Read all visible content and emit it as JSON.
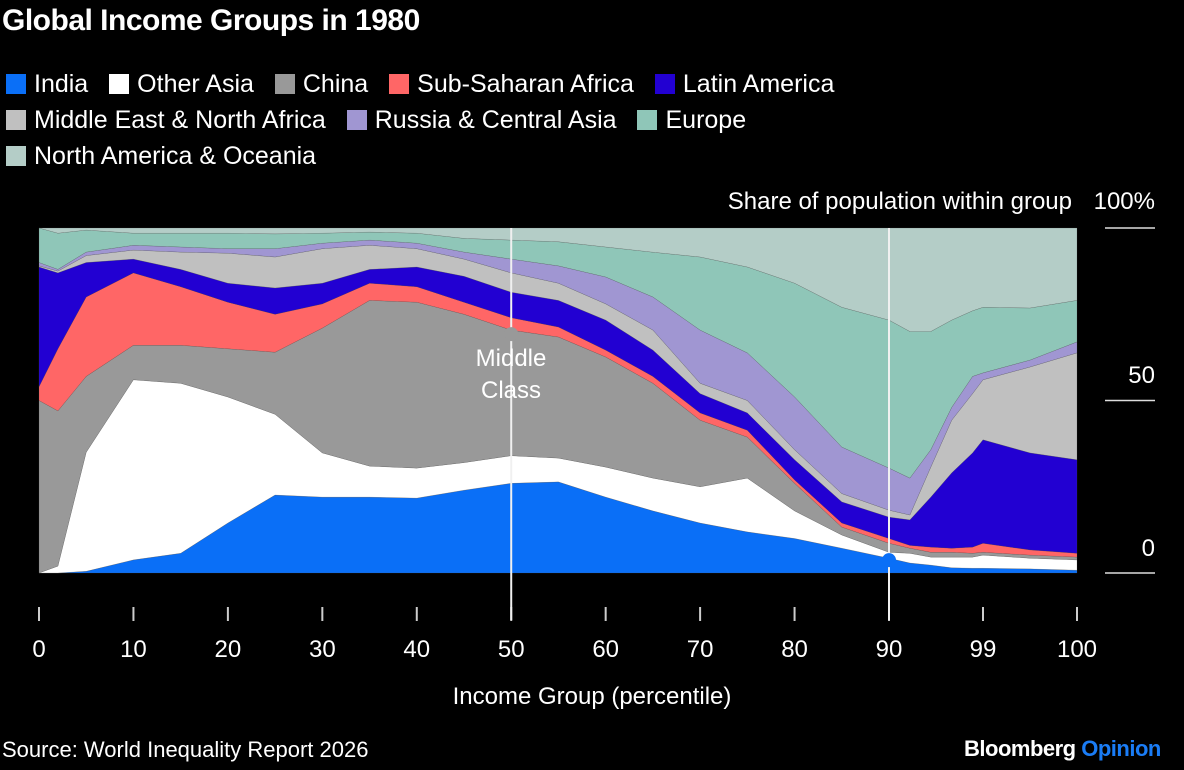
{
  "title": "Global Income Groups in 1980",
  "source": "Source: World Inequality Report 2026",
  "brand": {
    "name": "Bloomberg",
    "suffix": "Opinion"
  },
  "chart_data": {
    "type": "area",
    "stacked": true,
    "title": "Global Income Groups in 1980",
    "xlabel": "Income Group (percentile)",
    "ylabel": "Share of population within group",
    "ylim": [
      0,
      100
    ],
    "y_ticks": [
      "100%",
      "50",
      "0"
    ],
    "y_tick_values": [
      100,
      50,
      0
    ],
    "x_ticks": [
      "0",
      "10",
      "20",
      "30",
      "40",
      "50",
      "60",
      "70",
      "80",
      "90",
      "99",
      "100"
    ],
    "x_tick_values": [
      0,
      10,
      20,
      30,
      40,
      50,
      60,
      70,
      80,
      90,
      99,
      100
    ],
    "grid": false,
    "legend_position": "top",
    "annotation": {
      "text_line1": "Middle",
      "text_line2": "Class",
      "x": 50
    },
    "reference_lines": [
      50,
      90
    ],
    "x": [
      0,
      2,
      5,
      10,
      15,
      20,
      25,
      30,
      35,
      40,
      45,
      50,
      55,
      60,
      65,
      70,
      75,
      80,
      85,
      90,
      92,
      94,
      96,
      98,
      99,
      99.5,
      100
    ],
    "series": [
      {
        "name": "India",
        "color": "#0a6ff7",
        "values": [
          0,
          0,
          0.5,
          3.8,
          5.7,
          14.5,
          22.6,
          22,
          22,
          21.7,
          24,
          26,
          26.4,
          22,
          18,
          14.5,
          11.9,
          10,
          7.2,
          4.3,
          2.9,
          2.3,
          1.5,
          1.4,
          1.4,
          1.2,
          0.8
        ]
      },
      {
        "name": "Other Asia",
        "color": "#ffffff",
        "values": [
          0,
          2,
          34.5,
          52.2,
          49.3,
          36.5,
          23.4,
          12.8,
          9,
          8.7,
          8,
          8,
          6.9,
          8.7,
          9.5,
          10.5,
          15.6,
          8,
          3.8,
          1.7,
          2.8,
          2.3,
          3.1,
          3.2,
          3.8,
          3.1,
          3
        ]
      },
      {
        "name": "China",
        "color": "#999999",
        "values": [
          50,
          45,
          22,
          10,
          11,
          14,
          18,
          36.2,
          48,
          48.1,
          43,
          36.4,
          35.1,
          31.9,
          27.5,
          19.3,
          11.9,
          8,
          2.3,
          2.6,
          1.5,
          1.4,
          1.4,
          1.1,
          0.8,
          0.9,
          0.8
        ]
      },
      {
        "name": "Sub-Saharan Africa",
        "color": "#ff6666",
        "values": [
          4,
          18,
          23,
          21,
          17,
          13.5,
          11,
          7,
          5,
          4.5,
          3.5,
          3.6,
          2.9,
          2,
          2,
          2.1,
          2,
          1,
          1.2,
          1.4,
          0.8,
          1.5,
          1.2,
          1.8,
          2.6,
          1.5,
          1.1
        ]
      },
      {
        "name": "Latin America",
        "color": "#2200d2",
        "values": [
          34.7,
          22,
          10,
          4,
          5,
          5.5,
          7.6,
          6,
          4,
          5.7,
          7.5,
          7.4,
          7.7,
          8.7,
          7.6,
          5.6,
          5,
          5.8,
          6.1,
          6.2,
          7.4,
          14.5,
          21.8,
          27.3,
          30,
          28.1,
          27.1
        ]
      },
      {
        "name": "Middle East & North Africa",
        "color": "#c0c0c0",
        "values": [
          0.3,
          0.5,
          2,
          2.6,
          5,
          8.7,
          9,
          10,
          7,
          5.3,
          5,
          5.6,
          5,
          4.7,
          5.8,
          3,
          3.6,
          2.9,
          2.4,
          2,
          1.4,
          8.7,
          15.3,
          17.2,
          17.4,
          24.9,
          31
        ]
      },
      {
        "name": "Russia & Central Asia",
        "color": "#a096d2",
        "values": [
          1,
          0.5,
          1,
          1.4,
          1.5,
          1.3,
          2.4,
          1.6,
          1.5,
          1.6,
          2,
          4,
          5,
          7.8,
          9.6,
          15.4,
          13.8,
          15.3,
          13.5,
          12.2,
          10.7,
          5,
          3.7,
          5,
          2,
          2,
          3.2
        ]
      },
      {
        "name": "Europe",
        "color": "#8fc6b8",
        "values": [
          10,
          10.5,
          6.4,
          3.5,
          4,
          4.5,
          4.3,
          2.9,
          2.3,
          2.9,
          4,
          5.5,
          7,
          8.7,
          13,
          21.2,
          24.9,
          33,
          40.5,
          42.9,
          42.5,
          34.3,
          25.3,
          19,
          19,
          15.1,
          12
        ]
      },
      {
        "name": "North America & Oceania",
        "color": "#b4cdc7",
        "values": [
          0,
          1.5,
          0.6,
          1.5,
          1.5,
          1.5,
          1.7,
          1.5,
          1.2,
          1.5,
          3,
          3.5,
          4,
          5.5,
          7,
          8.4,
          11.3,
          16,
          23,
          26.7,
          30,
          30,
          26.7,
          24,
          23,
          23.2,
          21
        ]
      }
    ]
  }
}
